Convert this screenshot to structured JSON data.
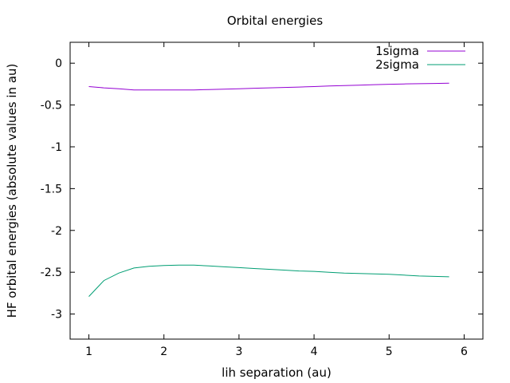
{
  "chart_data": {
    "type": "line",
    "title": "Orbital energies",
    "xlabel": "lih separation (au)",
    "ylabel": "HF orbital energies (absolute values in au)",
    "xlim": [
      0.75,
      6.25
    ],
    "ylim": [
      -3.3,
      0.25
    ],
    "xticks": [
      1,
      2,
      3,
      4,
      5,
      6
    ],
    "xtick_labels": [
      "1",
      "2",
      "3",
      "4",
      "5",
      "6"
    ],
    "yticks": [
      0,
      -0.5,
      -1,
      -1.5,
      -2,
      -2.5,
      -3
    ],
    "ytick_labels": [
      "0",
      "-0.5",
      "-1",
      "-1.5",
      "-2",
      "-2.5",
      "-3"
    ],
    "legend_position": "top-right",
    "grid": false,
    "series": [
      {
        "name": "1sigma",
        "color": "#9400d3",
        "x": [
          1.0,
          1.2,
          1.4,
          1.6,
          1.8,
          2.0,
          2.2,
          2.4,
          2.6,
          2.8,
          3.0,
          3.2,
          3.4,
          3.6,
          3.8,
          4.0,
          4.2,
          4.4,
          4.6,
          4.8,
          5.0,
          5.2,
          5.4,
          5.6,
          5.8
        ],
        "y": [
          -0.28,
          -0.295,
          -0.305,
          -0.32,
          -0.32,
          -0.32,
          -0.32,
          -0.32,
          -0.315,
          -0.31,
          -0.305,
          -0.3,
          -0.295,
          -0.29,
          -0.285,
          -0.28,
          -0.272,
          -0.267,
          -0.262,
          -0.257,
          -0.252,
          -0.248,
          -0.245,
          -0.242,
          -0.24
        ]
      },
      {
        "name": "2sigma",
        "color": "#009e73",
        "x": [
          1.0,
          1.2,
          1.4,
          1.6,
          1.8,
          2.0,
          2.2,
          2.4,
          2.6,
          2.8,
          3.0,
          3.2,
          3.4,
          3.6,
          3.8,
          4.0,
          4.2,
          4.4,
          4.6,
          4.8,
          5.0,
          5.2,
          5.4,
          5.6,
          5.8
        ],
        "y": [
          -2.79,
          -2.6,
          -2.51,
          -2.45,
          -2.43,
          -2.42,
          -2.415,
          -2.415,
          -2.425,
          -2.435,
          -2.445,
          -2.455,
          -2.465,
          -2.475,
          -2.485,
          -2.49,
          -2.5,
          -2.51,
          -2.515,
          -2.52,
          -2.525,
          -2.535,
          -2.545,
          -2.55,
          -2.555
        ]
      }
    ]
  }
}
